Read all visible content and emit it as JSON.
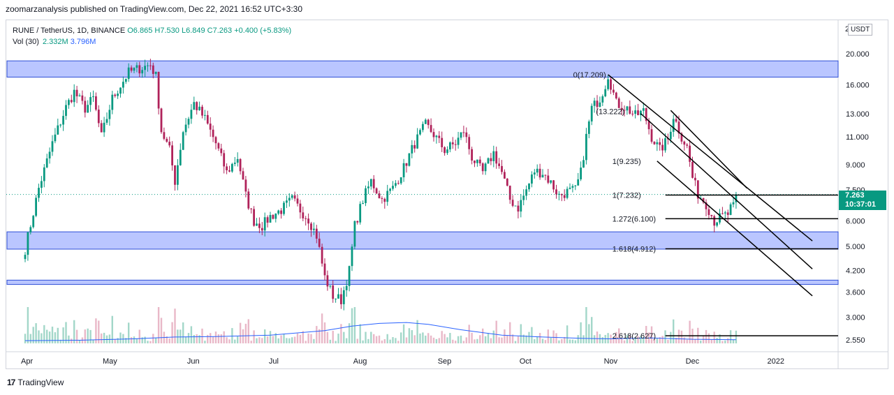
{
  "header": {
    "published": "zoomarzanalysis published on TradingView.com, Dec 22, 2021 16:52 UTC+3:30"
  },
  "legend": {
    "symbol": "RUNE / TetherUS, 1D, BINANCE",
    "open": "O6.865",
    "high": "H7.530",
    "low": "L6.849",
    "close": "C7.263",
    "change": "+0.400 (+5.83%)",
    "vol_label": "Vol (30)",
    "vol_value": "2.332M",
    "vol_ma": "3.796M"
  },
  "axis": {
    "currency": "USDT",
    "top_label": "2",
    "price_now": "7.263",
    "countdown": "10:37:01"
  },
  "footer": {
    "brand": "TradingView"
  },
  "colors": {
    "up": "#089981",
    "down": "#b0225a",
    "zone_fill": "#aebcff",
    "zone_border": "#2f4fd6",
    "vol_up": "#a3d7c9",
    "vol_down": "#e9b8c8",
    "vol_ma": "#2962ff"
  },
  "chart_data": {
    "type": "candlestick",
    "scale": "log",
    "title": "RUNE / TetherUS, 1D, BINANCE",
    "y_ticks": [
      20.0,
      16.0,
      13.0,
      11.0,
      9.0,
      7.5,
      6.0,
      5.0,
      4.2,
      3.6,
      3.0,
      2.55
    ],
    "y_tick_labels": [
      "20.000",
      "16.000",
      "13.000",
      "11.000",
      "9.000",
      "7.500",
      "6.000",
      "5.000",
      "4.200",
      "3.600",
      "3.000",
      "2.550"
    ],
    "x_ticks": [
      {
        "label": "Apr",
        "day": 0
      },
      {
        "label": "May",
        "day": 30
      },
      {
        "label": "Jun",
        "day": 61
      },
      {
        "label": "Jul",
        "day": 91
      },
      {
        "label": "Aug",
        "day": 122
      },
      {
        "label": "Sep",
        "day": 153
      },
      {
        "label": "Oct",
        "day": 183
      },
      {
        "label": "Nov",
        "day": 214
      },
      {
        "label": "Dec",
        "day": 244
      },
      {
        "label": "2022",
        "day": 275
      }
    ],
    "price_path": [
      [
        0,
        4.9
      ],
      [
        5,
        7.6
      ],
      [
        10,
        10.5
      ],
      [
        15,
        13.6
      ],
      [
        18,
        15.2
      ],
      [
        22,
        13.5
      ],
      [
        25,
        14.5
      ],
      [
        28,
        11.0
      ],
      [
        32,
        14.5
      ],
      [
        38,
        17.5
      ],
      [
        42,
        18.0
      ],
      [
        46,
        18.5
      ],
      [
        48,
        17.0
      ],
      [
        50,
        11.5
      ],
      [
        53,
        10.0
      ],
      [
        55,
        8.0
      ],
      [
        58,
        11.5
      ],
      [
        62,
        14.0
      ],
      [
        66,
        12.5
      ],
      [
        70,
        10.5
      ],
      [
        74,
        8.5
      ],
      [
        78,
        9.5
      ],
      [
        81,
        7.2
      ],
      [
        84,
        6.0
      ],
      [
        87,
        5.8
      ],
      [
        90,
        6.2
      ],
      [
        94,
        6.5
      ],
      [
        98,
        7.0
      ],
      [
        101,
        6.5
      ],
      [
        104,
        6.1
      ],
      [
        107,
        5.4
      ],
      [
        110,
        4.0
      ],
      [
        113,
        3.5
      ],
      [
        116,
        3.4
      ],
      [
        119,
        4.2
      ],
      [
        121,
        5.8
      ],
      [
        124,
        7.0
      ],
      [
        127,
        8.0
      ],
      [
        131,
        7.0
      ],
      [
        135,
        7.6
      ],
      [
        139,
        8.8
      ],
      [
        143,
        10.5
      ],
      [
        147,
        12.0
      ],
      [
        150,
        11.2
      ],
      [
        154,
        10.0
      ],
      [
        158,
        10.5
      ],
      [
        161,
        11.5
      ],
      [
        164,
        9.5
      ],
      [
        168,
        8.5
      ],
      [
        172,
        9.8
      ],
      [
        175,
        8.5
      ],
      [
        178,
        7.0
      ],
      [
        181,
        6.6
      ],
      [
        184,
        7.5
      ],
      [
        187,
        8.6
      ],
      [
        190,
        8.5
      ],
      [
        193,
        7.9
      ],
      [
        196,
        7.2
      ],
      [
        199,
        7.4
      ],
      [
        202,
        7.5
      ],
      [
        204,
        8.5
      ],
      [
        206,
        11.0
      ],
      [
        208,
        13.5
      ],
      [
        211,
        14.5
      ],
      [
        213,
        16.0
      ],
      [
        214,
        17.209
      ],
      [
        217,
        14.0
      ],
      [
        221,
        13.5
      ],
      [
        224,
        12.8
      ],
      [
        227,
        13.222
      ],
      [
        230,
        11.0
      ],
      [
        233,
        10.0
      ],
      [
        236,
        10.8
      ],
      [
        238,
        12.8
      ],
      [
        241,
        11.0
      ],
      [
        243,
        10.2
      ],
      [
        245,
        8.2
      ],
      [
        247,
        7.3
      ],
      [
        250,
        6.8
      ],
      [
        253,
        6.0
      ],
      [
        256,
        6.2
      ],
      [
        258,
        6.3
      ],
      [
        260,
        6.865
      ],
      [
        261,
        7.263
      ]
    ],
    "current_price": 7.263,
    "zones": [
      {
        "top": 19.0,
        "bottom": 16.9
      },
      {
        "top": 5.55,
        "bottom": 4.9
      },
      {
        "top": 3.92,
        "bottom": 3.8
      }
    ],
    "fib_levels": [
      {
        "label": "0(17.209)",
        "value": 17.209,
        "start_day": 214
      },
      {
        "label": "(13.222)",
        "value": 13.222,
        "start_day": 227
      },
      {
        "label": "1(9.235)",
        "value": 9.235,
        "start_day": 233
      },
      {
        "label": "1(7.232)",
        "value": 7.232,
        "start_day": 233
      },
      {
        "label": "1.272(6.100)",
        "value": 6.1,
        "start_day": 233
      },
      {
        "label": "1.618(4.912)",
        "value": 4.912,
        "start_day": 233
      },
      {
        "label": "2.618(2.627)",
        "value": 2.627,
        "start_day": 233
      }
    ],
    "channel_lines": [
      {
        "from": [
          214,
          17.209
        ],
        "to": [
          289,
          5.2
        ]
      },
      {
        "from": [
          226,
          13.0
        ],
        "to": [
          289,
          4.25
        ]
      },
      {
        "from": [
          232,
          9.235
        ],
        "to": [
          289,
          3.5
        ]
      },
      {
        "from": [
          237,
          13.3
        ],
        "to": [
          265,
          7.6
        ]
      }
    ],
    "volume_ma_path": [
      [
        0,
        0.3
      ],
      [
        20,
        0.35
      ],
      [
        40,
        0.5
      ],
      [
        55,
        0.7
      ],
      [
        70,
        0.75
      ],
      [
        90,
        0.9
      ],
      [
        110,
        1.4
      ],
      [
        120,
        1.9
      ],
      [
        130,
        2.2
      ],
      [
        140,
        2.3
      ],
      [
        148,
        2.1
      ],
      [
        160,
        1.5
      ],
      [
        175,
        0.9
      ],
      [
        190,
        0.7
      ],
      [
        205,
        0.55
      ],
      [
        215,
        0.5
      ],
      [
        230,
        0.6
      ],
      [
        245,
        0.45
      ],
      [
        261,
        0.4
      ]
    ],
    "volume_max": 4.0
  }
}
